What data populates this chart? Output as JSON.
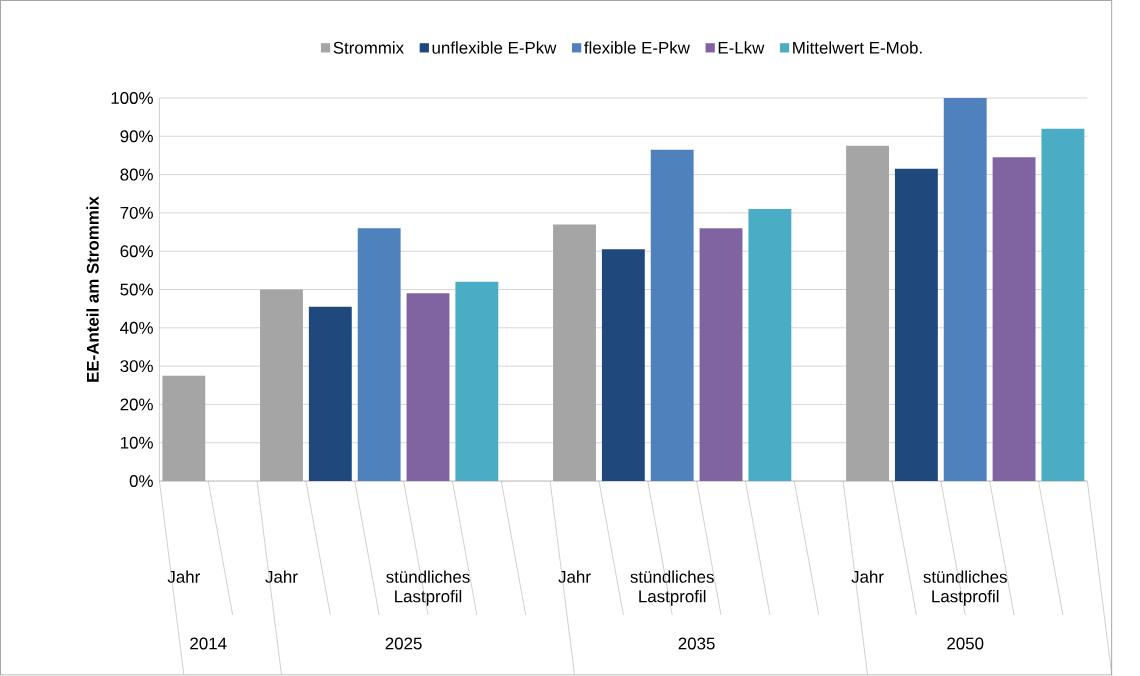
{
  "chart_data": {
    "type": "bar",
    "ylabel": "EE-Anteil am Strommix",
    "categories": [
      "Jahr",
      null,
      "Jahr",
      null,
      null,
      "stündliches Lastprofil",
      null,
      null,
      "Jahr",
      null,
      "stündliches Lastprofil",
      null,
      null,
      null,
      "Jahr",
      null,
      "stündliches Lastprofil",
      null,
      null
    ],
    "annotations": [
      "2014",
      "2025",
      "2035",
      "2050"
    ],
    "series": [
      {
        "name": "Strommix",
        "color": "#a5a5a5",
        "values": [
          27.5,
          null,
          50,
          null,
          null,
          null,
          null,
          null,
          67,
          null,
          null,
          null,
          null,
          null,
          87.5,
          null,
          null,
          null,
          null
        ]
      },
      {
        "name": "unflexible E-Pkw",
        "color": "#1f497d",
        "values": [
          null,
          null,
          null,
          45.5,
          null,
          null,
          null,
          null,
          null,
          60.5,
          null,
          null,
          null,
          null,
          null,
          81.5,
          null,
          null,
          null
        ]
      },
      {
        "name": "flexible E-Pkw",
        "color": "#4f81bd",
        "values": [
          null,
          null,
          null,
          null,
          66,
          null,
          null,
          null,
          null,
          null,
          86.5,
          null,
          null,
          null,
          null,
          null,
          100,
          null,
          null
        ]
      },
      {
        "name": "E-Lkw",
        "color": "#8064a2",
        "values": [
          null,
          null,
          null,
          null,
          null,
          49,
          null,
          null,
          null,
          null,
          null,
          66,
          null,
          null,
          null,
          null,
          null,
          84.5,
          null
        ]
      },
      {
        "name": "Mittelwert E-Mob.",
        "color": "#4bacc6",
        "values": [
          null,
          null,
          null,
          null,
          null,
          null,
          52,
          null,
          null,
          null,
          null,
          null,
          71,
          null,
          null,
          null,
          null,
          null,
          92
        ]
      }
    ],
    "ylim": [
      0,
      100
    ],
    "yticks": [
      {
        "value": 0,
        "label": "0%"
      },
      {
        "value": 10,
        "label": "10%"
      },
      {
        "value": 20,
        "label": "20%"
      },
      {
        "value": 30,
        "label": "30%"
      },
      {
        "value": 40,
        "label": "40%"
      },
      {
        "value": 50,
        "label": "50%"
      },
      {
        "value": 60,
        "label": "60%"
      },
      {
        "value": 70,
        "label": "70%"
      },
      {
        "value": 80,
        "label": "80%"
      },
      {
        "value": 90,
        "label": "90%"
      },
      {
        "value": 100,
        "label": "100%"
      }
    ],
    "grid": "y",
    "legend": "top"
  }
}
